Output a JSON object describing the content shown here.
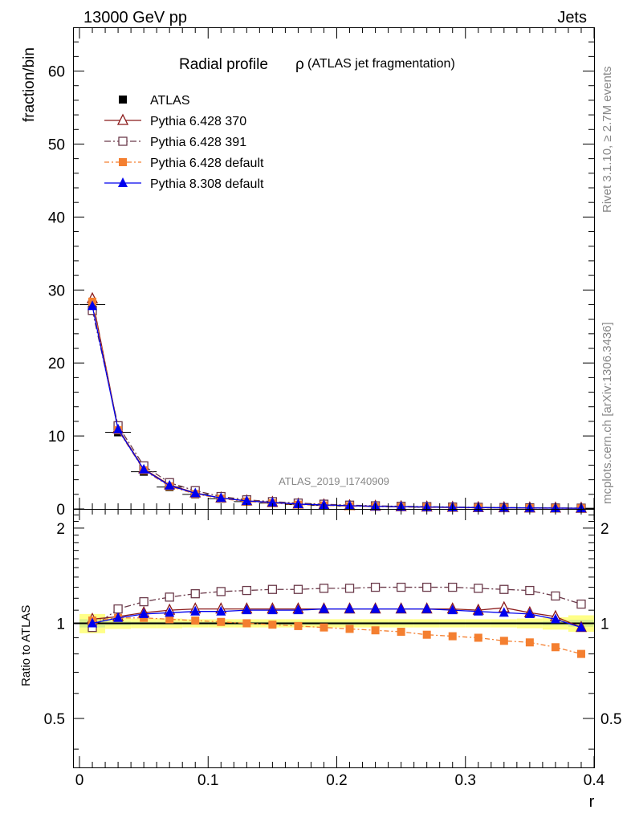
{
  "header": {
    "left": "13000 GeV pp",
    "right": "Jets"
  },
  "side_labels": {
    "top": "Rivet 3.1.10, ≥ 2.7M events",
    "bottom": "mcplots.cern.ch [arXiv:1306.3436]"
  },
  "watermark": "ATLAS_2019_I1740909",
  "chart_data": [
    {
      "type": "line",
      "title_main": "Radial profile",
      "title_symbol": "ρ",
      "title_sub": "(ATLAS jet fragmentation)",
      "xlabel": "",
      "ylabel": "fraction/bin",
      "xlim": [
        -0.005,
        0.4
      ],
      "ylim": [
        0,
        66
      ],
      "yticks": [
        0,
        10,
        20,
        30,
        40,
        50,
        60
      ],
      "x": [
        0.01,
        0.03,
        0.05,
        0.07,
        0.09,
        0.11,
        0.13,
        0.15,
        0.17,
        0.19,
        0.21,
        0.23,
        0.25,
        0.27,
        0.29,
        0.31,
        0.33,
        0.35,
        0.37,
        0.39
      ],
      "legend_position": "top-left",
      "series": [
        {
          "name": "ATLAS",
          "color": "#000000",
          "marker": "square-filled",
          "dash": "none",
          "values": [
            28.0,
            10.5,
            5.1,
            3.0,
            2.0,
            1.4,
            1.0,
            0.8,
            0.6,
            0.5,
            0.4,
            0.33,
            0.28,
            0.24,
            0.2,
            0.17,
            0.15,
            0.13,
            0.11,
            0.1
          ]
        },
        {
          "name": "Pythia 6.428 370",
          "color": "#8b1a1a",
          "marker": "triangle-open",
          "dash": "none",
          "values": [
            28.8,
            11.0,
            5.5,
            3.3,
            2.2,
            1.5,
            1.1,
            0.9,
            0.67,
            0.56,
            0.45,
            0.37,
            0.31,
            0.27,
            0.22,
            0.19,
            0.17,
            0.14,
            0.12,
            0.1
          ]
        },
        {
          "name": "Pythia 6.428 391",
          "color": "#6b3a4a",
          "marker": "square-open",
          "dash": "8,3,2,3",
          "values": [
            27.2,
            11.4,
            5.9,
            3.6,
            2.5,
            1.7,
            1.25,
            1.0,
            0.8,
            0.65,
            0.52,
            0.43,
            0.36,
            0.31,
            0.26,
            0.22,
            0.19,
            0.16,
            0.13,
            0.11
          ]
        },
        {
          "name": "Pythia 6.428 default",
          "color": "#f47f30",
          "marker": "square-filled",
          "dash": "6,3,2,3",
          "values": [
            28.4,
            10.8,
            5.3,
            3.1,
            2.05,
            1.42,
            1.02,
            0.79,
            0.59,
            0.48,
            0.38,
            0.31,
            0.26,
            0.22,
            0.18,
            0.15,
            0.13,
            0.11,
            0.09,
            0.08
          ]
        },
        {
          "name": "Pythia 8.308 default",
          "color": "#0000ee",
          "marker": "triangle-filled",
          "dash": "none",
          "values": [
            27.8,
            10.9,
            5.4,
            3.2,
            2.15,
            1.5,
            1.1,
            0.88,
            0.66,
            0.55,
            0.44,
            0.36,
            0.3,
            0.26,
            0.22,
            0.18,
            0.16,
            0.14,
            0.11,
            0.1
          ]
        }
      ]
    },
    {
      "type": "line",
      "xlabel": "r",
      "ylabel": "Ratio to ATLAS",
      "xlim": [
        -0.005,
        0.4
      ],
      "ylim": [
        0.35,
        2.3
      ],
      "yscale": "log",
      "xticks": [
        0,
        0.1,
        0.2,
        0.3,
        0.4
      ],
      "xtick_labels": [
        "0",
        "0.1",
        "0.2",
        "0.3",
        "0.4"
      ],
      "yticks": [
        0.5,
        1,
        2
      ],
      "ytick_labels": [
        "0.5",
        "1",
        "2"
      ],
      "reference_line": 1,
      "uncertainty_band": {
        "colors": [
          "#d8ee8a",
          "#ffff88"
        ],
        "inner": [
          0.03,
          0.015,
          0.012,
          0.012,
          0.012,
          0.012,
          0.012,
          0.012,
          0.012,
          0.012,
          0.012,
          0.012,
          0.012,
          0.012,
          0.012,
          0.012,
          0.012,
          0.012,
          0.015,
          0.025
        ],
        "outer": [
          0.07,
          0.04,
          0.035,
          0.035,
          0.03,
          0.03,
          0.03,
          0.03,
          0.03,
          0.03,
          0.03,
          0.03,
          0.03,
          0.03,
          0.03,
          0.03,
          0.03,
          0.035,
          0.045,
          0.06
        ]
      },
      "x": [
        0.01,
        0.03,
        0.05,
        0.07,
        0.09,
        0.11,
        0.13,
        0.15,
        0.17,
        0.19,
        0.21,
        0.23,
        0.25,
        0.27,
        0.29,
        0.31,
        0.33,
        0.35,
        0.37,
        0.39
      ],
      "series": [
        {
          "name": "Pythia 6.428 370",
          "color": "#8b1a1a",
          "marker": "triangle-open",
          "dash": "none",
          "values": [
            1.03,
            1.05,
            1.08,
            1.1,
            1.11,
            1.11,
            1.11,
            1.11,
            1.11,
            1.11,
            1.11,
            1.11,
            1.11,
            1.11,
            1.11,
            1.1,
            1.12,
            1.08,
            1.05,
            0.97
          ]
        },
        {
          "name": "Pythia 6.428 391",
          "color": "#6b3a4a",
          "marker": "square-open",
          "dash": "8,3,2,3",
          "values": [
            0.97,
            1.11,
            1.17,
            1.21,
            1.24,
            1.26,
            1.27,
            1.28,
            1.28,
            1.29,
            1.29,
            1.3,
            1.3,
            1.3,
            1.3,
            1.29,
            1.28,
            1.27,
            1.22,
            1.15
          ]
        },
        {
          "name": "Pythia 6.428 default",
          "color": "#f47f30",
          "marker": "square-filled",
          "dash": "6,3,2,3",
          "values": [
            1.02,
            1.04,
            1.04,
            1.03,
            1.02,
            1.01,
            1.0,
            0.99,
            0.98,
            0.97,
            0.96,
            0.95,
            0.94,
            0.92,
            0.91,
            0.9,
            0.88,
            0.87,
            0.84,
            0.8
          ]
        },
        {
          "name": "Pythia 8.308 default",
          "color": "#0000ee",
          "marker": "triangle-filled",
          "dash": "none",
          "values": [
            1.0,
            1.04,
            1.07,
            1.08,
            1.09,
            1.09,
            1.1,
            1.1,
            1.1,
            1.11,
            1.11,
            1.11,
            1.11,
            1.11,
            1.1,
            1.09,
            1.08,
            1.07,
            1.03,
            0.97
          ]
        }
      ]
    }
  ]
}
